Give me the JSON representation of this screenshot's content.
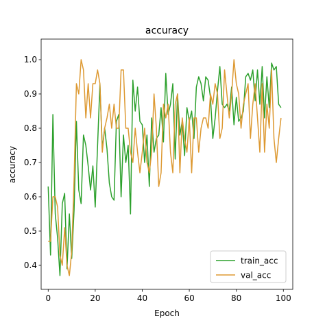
{
  "chart_data": {
    "type": "line",
    "title": "accuracy",
    "xlabel": "Epoch",
    "ylabel": "accuracy",
    "xlim": [
      -3,
      104
    ],
    "ylim": [
      0.33,
      1.06
    ],
    "xticks": [
      0,
      20,
      40,
      60,
      80,
      100
    ],
    "yticks": [
      0.4,
      0.5,
      0.6,
      0.7,
      0.8,
      0.9,
      1.0
    ],
    "ytick_labels": [
      "0.4",
      "0.5",
      "0.6",
      "0.7",
      "0.8",
      "0.9",
      "1.0"
    ],
    "grid": false,
    "legend": "lower right",
    "x": [
      0,
      1,
      2,
      3,
      4,
      5,
      6,
      7,
      8,
      9,
      10,
      11,
      12,
      13,
      14,
      15,
      16,
      17,
      18,
      19,
      20,
      21,
      22,
      23,
      24,
      25,
      26,
      27,
      28,
      29,
      30,
      31,
      32,
      33,
      34,
      35,
      36,
      37,
      38,
      39,
      40,
      41,
      42,
      43,
      44,
      45,
      46,
      47,
      48,
      49,
      50,
      51,
      52,
      53,
      54,
      55,
      56,
      57,
      58,
      59,
      60,
      61,
      62,
      63,
      64,
      65,
      66,
      67,
      68,
      69,
      70,
      71,
      72,
      73,
      74,
      75,
      76,
      77,
      78,
      79,
      80,
      81,
      82,
      83,
      84,
      85,
      86,
      87,
      88,
      89,
      90,
      91,
      92,
      93,
      94,
      95,
      96,
      97,
      98,
      99
    ],
    "series": [
      {
        "name": "train_acc",
        "color": "#2ca02c",
        "values": [
          0.63,
          0.43,
          0.84,
          0.55,
          0.48,
          0.37,
          0.58,
          0.61,
          0.39,
          0.55,
          0.42,
          0.56,
          0.82,
          0.62,
          0.58,
          0.78,
          0.75,
          0.69,
          0.62,
          0.69,
          0.57,
          0.75,
          0.93,
          0.74,
          0.8,
          0.74,
          0.64,
          0.6,
          0.59,
          0.82,
          0.84,
          0.6,
          0.78,
          0.7,
          0.75,
          0.55,
          0.94,
          0.85,
          0.92,
          0.82,
          0.81,
          0.7,
          0.78,
          0.63,
          0.83,
          0.73,
          0.77,
          0.78,
          0.86,
          0.76,
          0.96,
          0.84,
          0.87,
          0.93,
          0.71,
          0.9,
          0.78,
          0.82,
          0.72,
          0.86,
          0.82,
          0.85,
          0.77,
          0.92,
          0.95,
          0.93,
          0.88,
          0.95,
          0.94,
          0.89,
          0.77,
          0.83,
          0.91,
          0.98,
          0.87,
          0.86,
          0.87,
          0.85,
          0.92,
          0.81,
          0.89,
          0.82,
          0.83,
          0.85,
          0.95,
          0.96,
          0.94,
          0.97,
          0.88,
          0.97,
          0.87,
          0.98,
          0.83,
          0.95,
          0.86,
          0.99,
          0.97,
          0.98,
          0.87,
          0.86
        ]
      },
      {
        "name": "val_acc",
        "color": "#dd9932",
        "values": [
          0.47,
          0.47,
          0.6,
          0.6,
          0.57,
          0.43,
          0.4,
          0.51,
          0.4,
          0.37,
          0.44,
          0.65,
          0.93,
          0.9,
          1.0,
          0.97,
          0.83,
          0.93,
          0.83,
          0.93,
          0.93,
          0.97,
          0.93,
          0.73,
          0.8,
          0.83,
          0.87,
          0.8,
          0.87,
          0.8,
          0.8,
          0.97,
          0.97,
          0.8,
          0.8,
          0.73,
          0.7,
          0.8,
          0.73,
          0.67,
          0.73,
          0.8,
          0.7,
          0.67,
          0.73,
          0.9,
          0.8,
          0.63,
          0.67,
          0.87,
          0.83,
          0.87,
          0.73,
          0.67,
          0.87,
          0.9,
          0.67,
          0.83,
          0.77,
          0.73,
          0.83,
          0.67,
          0.83,
          0.83,
          0.73,
          0.8,
          0.83,
          0.83,
          0.8,
          0.9,
          0.87,
          0.93,
          0.9,
          0.77,
          0.8,
          0.97,
          0.9,
          0.83,
          0.9,
          1.0,
          0.93,
          0.9,
          0.8,
          0.87,
          0.9,
          0.93,
          0.77,
          0.87,
          0.93,
          0.83,
          0.73,
          0.93,
          0.73,
          0.87,
          0.8,
          0.97,
          0.77,
          0.7,
          0.77,
          0.83
        ]
      }
    ]
  }
}
